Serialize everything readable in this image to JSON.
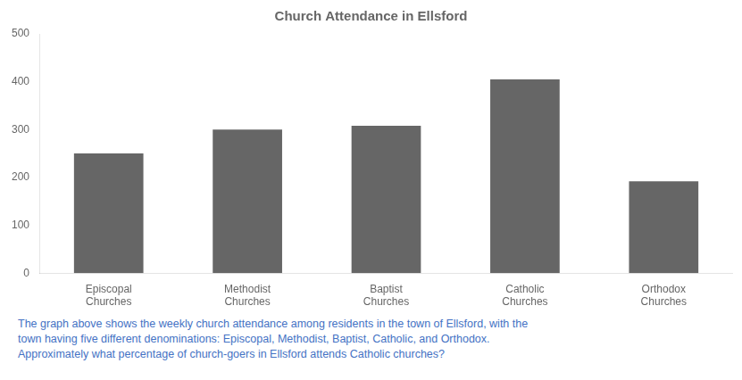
{
  "chart_data": {
    "type": "bar",
    "title": "Church Attendance in Ellsford",
    "categories": [
      "Episcopal\nChurches",
      "Methodist\nChurches",
      "Baptist\nChurches",
      "Catholic\nChurches",
      "Orthodox\nChurches"
    ],
    "values": [
      250,
      300,
      308,
      405,
      192
    ],
    "color": "#666666",
    "ylim": [
      0,
      500
    ],
    "yticks": [
      0,
      100,
      200,
      300,
      400,
      500
    ],
    "grid": false,
    "annotations": [
      {
        "text": "The graph above shows the weekly church attendance among residents in the town of Ellsford, with the",
        "color": "#4472c4"
      },
      {
        "text": "town having five different denominations: Episcopal, Methodist, Baptist, Catholic, and Orthodox.",
        "color": "#4472c4"
      },
      {
        "text": "Approximately what percentage of church-goers in Ellsford attends Catholic churches?",
        "color": "#4472c4"
      }
    ]
  }
}
